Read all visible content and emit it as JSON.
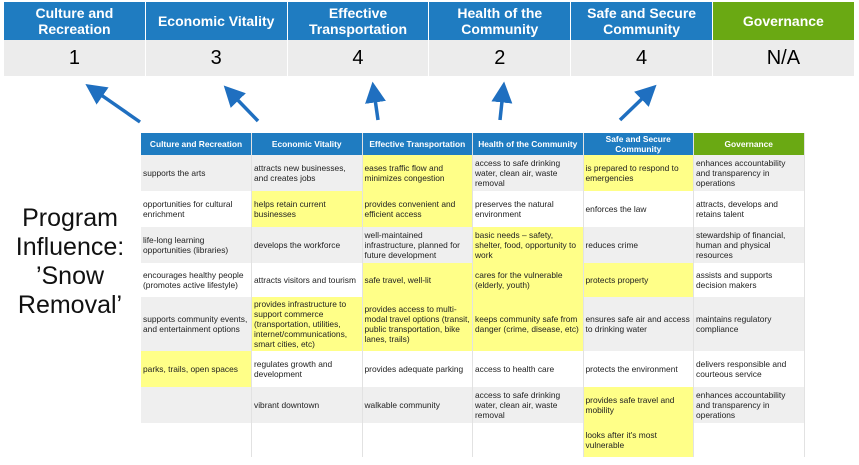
{
  "colors": {
    "blue": "#1f7cc1",
    "green": "#6aa913",
    "highlight": "#ffff88",
    "row_alt": "#efefef",
    "arrow": "#1f6fc0"
  },
  "summary": {
    "headers": [
      "Culture and Recreation",
      "Economic Vitality",
      "Effective Transportation",
      "Health of the Community",
      "Safe and Secure Community",
      "Governance"
    ],
    "scores": [
      "1",
      "3",
      "4",
      "2",
      "4",
      "N/A"
    ]
  },
  "program_label": [
    "Program",
    "Influence:",
    "’Snow",
    "Removal’"
  ],
  "table": {
    "headers": [
      "Culture and Recreation",
      "Economic Vitality",
      "Effective Transportation",
      "Health of the Community",
      "Safe and Secure Community",
      "Governance"
    ],
    "rows": [
      [
        "supports the arts",
        "attracts new businesses, and creates jobs",
        "eases traffic flow and minimizes congestion",
        "access to safe drinking water, clean air, waste removal",
        "is prepared to respond to emergencies",
        "enhances accountability and transparency in operations"
      ],
      [
        "opportunities for cultural enrichment",
        "helps retain current businesses",
        "provides convenient and efficient access",
        "preserves the natural environment",
        "enforces the law",
        "attracts, develops and retains talent"
      ],
      [
        "life-long learning opportunities (libraries)",
        "develops the workforce",
        "well-maintained infrastructure, planned for future development",
        "basic needs – safety, shelter, food, opportunity to work",
        "reduces crime",
        "stewardship of financial, human and physical resources"
      ],
      [
        "encourages healthy people (promotes active lifestyle)",
        "attracts visitors and tourism",
        "safe travel, well-lit",
        "cares for the vulnerable (elderly, youth)",
        "protects property",
        "assists and supports decision makers"
      ],
      [
        "supports community events, and entertainment options",
        "provides infrastructure to support commerce (transportation, utilities, internet/communications, smart cities, etc)",
        "provides access to multi-modal travel options (transit, public transportation, bike lanes, trails)",
        "keeps community safe from danger (crime, disease, etc)",
        "ensures safe air and access to drinking water",
        "maintains regulatory compliance"
      ],
      [
        "parks, trails, open spaces",
        "regulates growth and development",
        "provides adequate parking",
        "access to health care",
        "protects the environment",
        "delivers responsible and courteous service"
      ],
      [
        "",
        "vibrant downtown",
        "walkable community",
        "access to safe drinking water, clean air, waste removal",
        "provides safe travel and mobility",
        "enhances accountability and transparency in operations"
      ],
      [
        "",
        "",
        "",
        "",
        "looks after it's most vulnerable",
        ""
      ]
    ],
    "highlighted": [
      [
        0,
        2
      ],
      [
        0,
        4
      ],
      [
        1,
        1
      ],
      [
        1,
        2
      ],
      [
        2,
        3
      ],
      [
        3,
        2
      ],
      [
        3,
        3
      ],
      [
        3,
        4
      ],
      [
        4,
        1
      ],
      [
        4,
        2
      ],
      [
        4,
        3
      ],
      [
        5,
        0
      ],
      [
        6,
        4
      ],
      [
        7,
        4
      ]
    ]
  }
}
